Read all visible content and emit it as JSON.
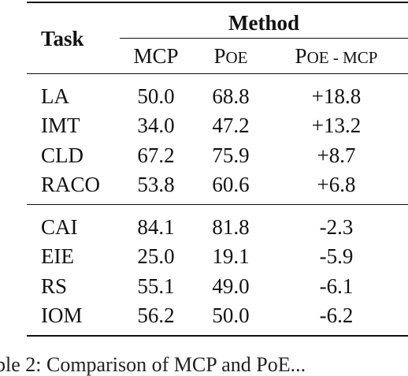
{
  "table": {
    "task_header": "Task",
    "method_header": "Method",
    "columns": {
      "mcp": "MCP",
      "poe_p": "P",
      "poe_rest": "OE",
      "diff_p": "P",
      "diff_rest": "OE - MCP"
    },
    "group1": [
      {
        "task": "LA",
        "mcp": "50.0",
        "poe": "68.8",
        "diff": "+18.8"
      },
      {
        "task": "IMT",
        "mcp": "34.0",
        "poe": "47.2",
        "diff": "+13.2"
      },
      {
        "task": "CLD",
        "mcp": "67.2",
        "poe": "75.9",
        "diff": "+8.7"
      },
      {
        "task": "RACO",
        "mcp": "53.8",
        "poe": "60.6",
        "diff": "+6.8"
      }
    ],
    "group2": [
      {
        "task": "CAI",
        "mcp": "84.1",
        "poe": "81.8",
        "diff": "-2.3"
      },
      {
        "task": "EIE",
        "mcp": "25.0",
        "poe": "19.1",
        "diff": "-5.9"
      },
      {
        "task": "RS",
        "mcp": "55.1",
        "poe": "49.0",
        "diff": "-6.1"
      },
      {
        "task": "IOM",
        "mcp": "56.2",
        "poe": "50.0",
        "diff": "-6.2"
      }
    ]
  },
  "caption": "ble 2: Comparison of MCP and PoE..."
}
